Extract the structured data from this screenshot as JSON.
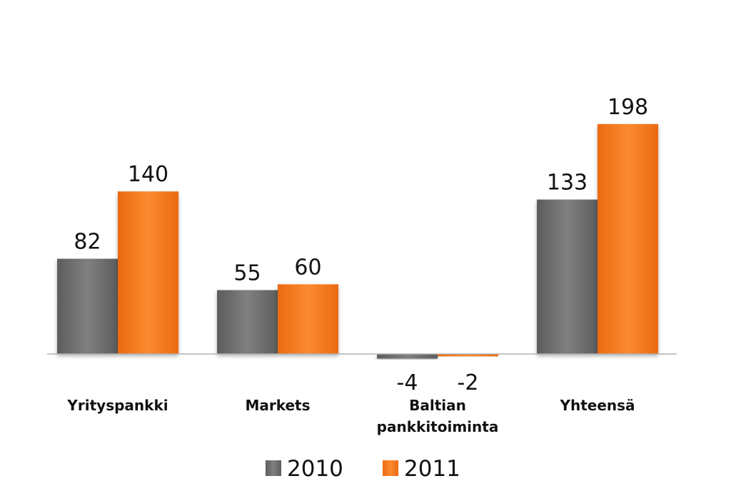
{
  "chart_data": {
    "type": "bar",
    "categories": [
      [
        "Yrityspankki"
      ],
      [
        "Markets"
      ],
      [
        "Baltian",
        "pankkitoiminta"
      ],
      [
        "Yhteensä"
      ]
    ],
    "series": [
      {
        "name": "2010",
        "values": [
          82,
          55,
          -4,
          133
        ],
        "color": "#6e6e6e"
      },
      {
        "name": "2011",
        "values": [
          140,
          60,
          -2,
          198
        ],
        "color": "#f47920"
      }
    ],
    "value_labels": [
      [
        "82",
        "55",
        "-4",
        "133"
      ],
      [
        "140",
        "60",
        "-2",
        "198"
      ]
    ],
    "legend_position": "bottom",
    "grid": false,
    "ylim": [
      -8,
      215
    ]
  }
}
